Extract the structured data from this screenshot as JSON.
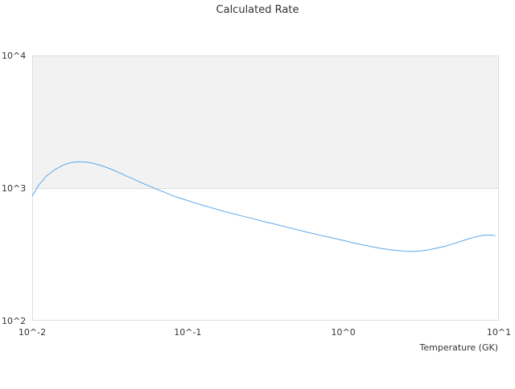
{
  "chart_data": {
    "type": "line",
    "title": "Calculated Rate",
    "xlabel": "Temperature (GK)",
    "ylabel": "",
    "x_scale": "log",
    "y_scale": "log",
    "xlim": [
      0.01,
      10
    ],
    "ylim": [
      100,
      10000
    ],
    "x_ticks": [
      {
        "value": 0.01,
        "label": "10^-2"
      },
      {
        "value": 0.1,
        "label": "10^-1"
      },
      {
        "value": 1,
        "label": "10^0"
      },
      {
        "value": 10,
        "label": "10^1"
      }
    ],
    "y_ticks": [
      {
        "value": 100,
        "label": "10^2"
      },
      {
        "value": 1000,
        "label": "10^3"
      },
      {
        "value": 10000,
        "label": "10^4"
      }
    ],
    "grid": false,
    "alternating_band_color": "#f2f2f2",
    "line_color": "#5aa7e8",
    "series": [
      {
        "x": [
          0.01,
          0.011,
          0.0123,
          0.014,
          0.0158,
          0.0178,
          0.02,
          0.0224,
          0.0251,
          0.0282,
          0.0316,
          0.0355,
          0.0398,
          0.0447,
          0.0501,
          0.0562,
          0.0631,
          0.0708,
          0.0794,
          0.0891,
          0.1,
          0.112,
          0.126,
          0.141,
          0.158,
          0.178,
          0.2,
          0.224,
          0.251,
          0.282,
          0.316,
          0.355,
          0.398,
          0.447,
          0.501,
          0.562,
          0.631,
          0.708,
          0.794,
          0.891,
          1.0,
          1.12,
          1.26,
          1.41,
          1.58,
          1.78,
          2.0,
          2.24,
          2.51,
          2.82,
          3.16,
          3.55,
          3.98,
          4.47,
          5.01,
          5.62,
          6.31,
          7.08,
          7.94,
          8.91,
          9.5
        ],
        "y": [
          870,
          1050,
          1230,
          1380,
          1490,
          1560,
          1580,
          1570,
          1530,
          1470,
          1400,
          1320,
          1240,
          1170,
          1100,
          1040,
          980,
          930,
          880,
          840,
          805,
          770,
          740,
          712,
          685,
          660,
          637,
          615,
          595,
          575,
          556,
          538,
          520,
          503,
          486,
          470,
          455,
          441,
          428,
          415,
          403,
          390,
          378,
          368,
          358,
          350,
          343,
          338,
          334,
          333,
          336,
          343,
          352,
          363,
          378,
          395,
          412,
          428,
          440,
          442,
          438
        ]
      }
    ]
  }
}
